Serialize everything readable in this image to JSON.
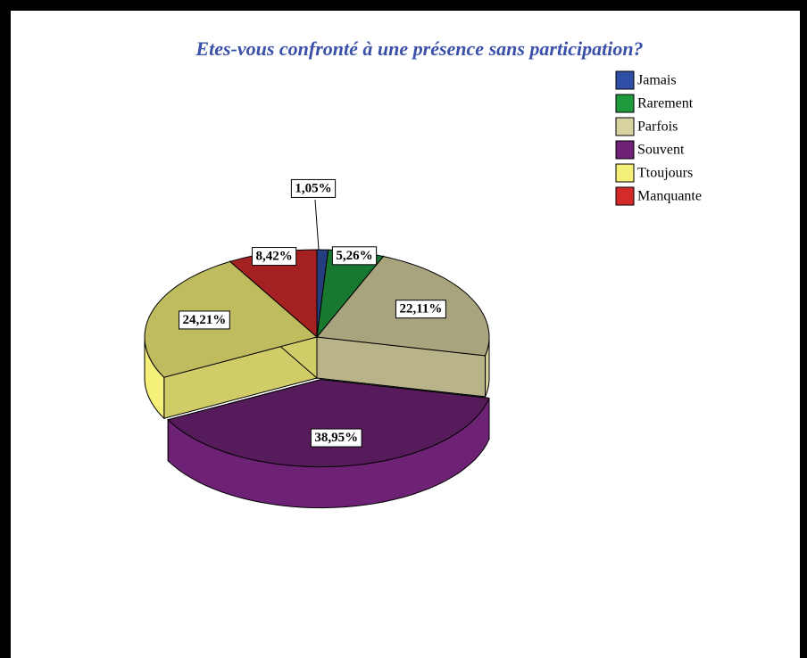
{
  "chart_data": {
    "type": "pie3d",
    "title": "Etes-vous confronté à une présence sans participation?",
    "categories": [
      "Jamais",
      "Rarement",
      "Parfois",
      "Souvent",
      "Ttoujours",
      "Manquante"
    ],
    "values": [
      1.05,
      5.26,
      22.11,
      38.95,
      24.21,
      8.42
    ],
    "value_labels": [
      "1,05%",
      "5,26%",
      "22,11%",
      "38,95%",
      "24,21%",
      "8,42%"
    ],
    "colors": [
      "#2f4fa6",
      "#1f9a3c",
      "#d8d2a0",
      "#6e2275",
      "#f5f07a",
      "#d42a2a"
    ],
    "exploded": [
      "Souvent"
    ],
    "legend": "top-right"
  }
}
